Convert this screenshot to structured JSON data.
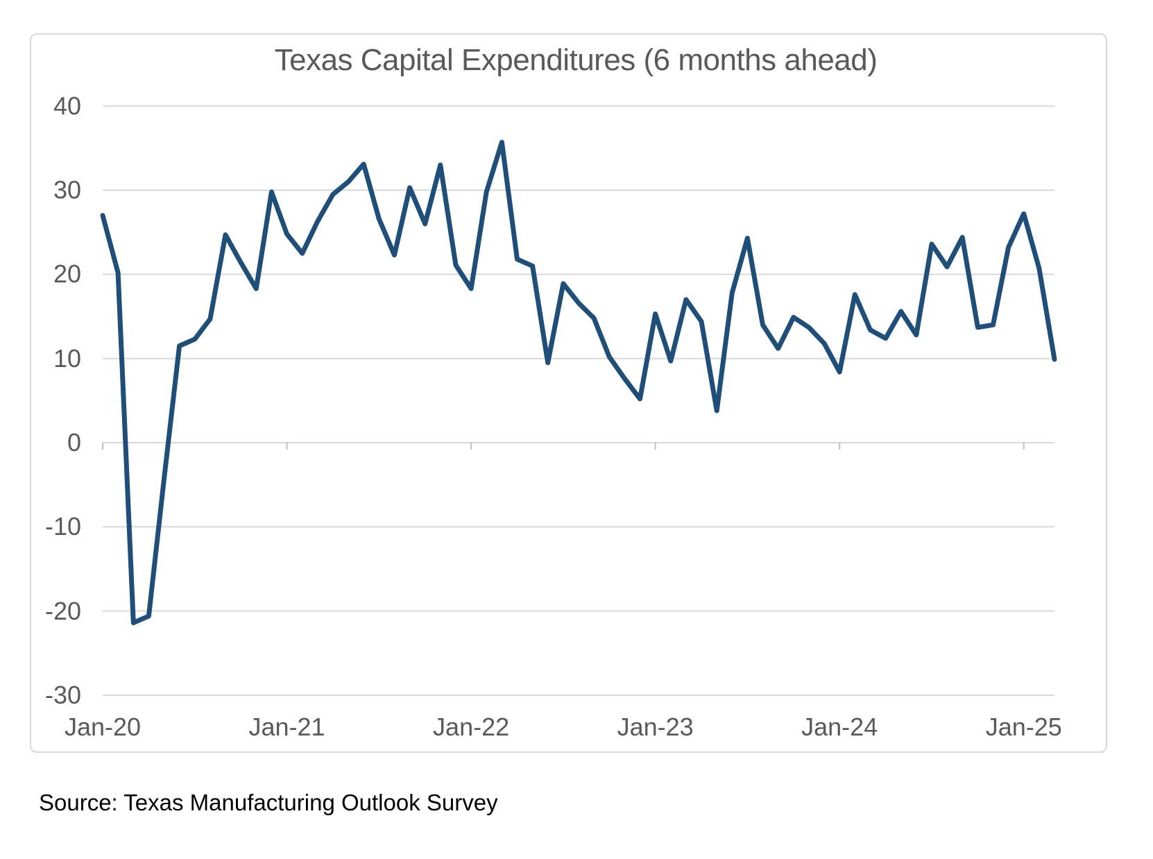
{
  "chart": {
    "title": "Texas Capital Expenditures (6 months ahead)",
    "source_note": "Source: Texas Manufacturing Outlook Survey"
  },
  "chart_data": {
    "type": "line",
    "title": "Texas Capital Expenditures (6 months ahead)",
    "xlabel": "",
    "ylabel": "",
    "ylim": [
      -30,
      40
    ],
    "y_ticks": [
      40,
      30,
      20,
      10,
      0,
      -10,
      -20,
      -30
    ],
    "x_tick_labels": [
      "Jan-20",
      "Jan-21",
      "Jan-22",
      "Jan-23",
      "Jan-24",
      "Jan-25"
    ],
    "x_tick_indices": [
      0,
      12,
      24,
      36,
      48,
      60
    ],
    "frequency": "monthly",
    "grid": "horizontal",
    "legend": "none",
    "line_color": "#1f4e79",
    "grid_color": "#d9d9d9",
    "tick_color": "#bfbfbf",
    "text_color": "#595959",
    "categories": [
      "Jan-20",
      "Feb-20",
      "Mar-20",
      "Apr-20",
      "May-20",
      "Jun-20",
      "Jul-20",
      "Aug-20",
      "Sep-20",
      "Oct-20",
      "Nov-20",
      "Dec-20",
      "Jan-21",
      "Feb-21",
      "Mar-21",
      "Apr-21",
      "May-21",
      "Jun-21",
      "Jul-21",
      "Aug-21",
      "Sep-21",
      "Oct-21",
      "Nov-21",
      "Dec-21",
      "Jan-22",
      "Feb-22",
      "Mar-22",
      "Apr-22",
      "May-22",
      "Jun-22",
      "Jul-22",
      "Aug-22",
      "Sep-22",
      "Oct-22",
      "Nov-22",
      "Dec-22",
      "Jan-23",
      "Feb-23",
      "Mar-23",
      "Apr-23",
      "May-23",
      "Jun-23",
      "Jul-23",
      "Aug-23",
      "Sep-23",
      "Oct-23",
      "Nov-23",
      "Dec-23",
      "Jan-24",
      "Feb-24",
      "Mar-24",
      "Apr-24",
      "May-24",
      "Jun-24",
      "Jul-24",
      "Aug-24",
      "Sep-24",
      "Oct-24",
      "Nov-24",
      "Dec-24",
      "Jan-25",
      "Feb-25",
      "Mar-25"
    ],
    "values": [
      27.0,
      20.2,
      -21.4,
      -20.6,
      -4.3,
      11.5,
      12.3,
      14.7,
      24.7,
      21.4,
      18.3,
      29.8,
      24.8,
      22.5,
      26.3,
      29.5,
      31.0,
      33.1,
      26.6,
      22.3,
      30.3,
      26.0,
      33.0,
      21.1,
      18.3,
      29.8,
      35.7,
      21.8,
      21.0,
      9.5,
      18.9,
      16.6,
      14.8,
      10.2,
      7.6,
      5.2,
      15.3,
      9.7,
      17.0,
      14.4,
      3.8,
      17.8,
      24.3,
      14.0,
      11.2,
      14.9,
      13.7,
      11.8,
      8.4,
      17.6,
      13.4,
      12.4,
      15.6,
      12.8,
      23.6,
      20.9,
      24.4,
      13.7,
      14.0,
      23.2,
      27.2,
      20.7,
      9.9
    ]
  }
}
